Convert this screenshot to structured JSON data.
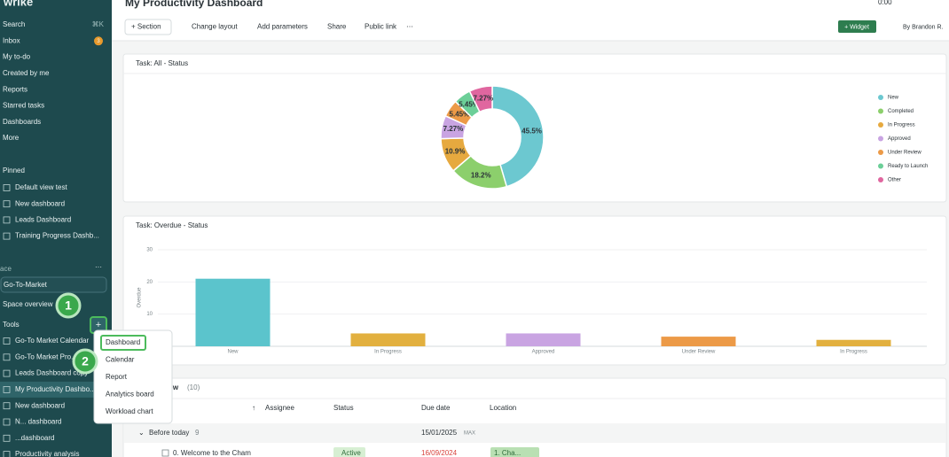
{
  "sidebar": {
    "logo": "wrike",
    "nav": [
      {
        "label": "Search",
        "shortcut": "⌘K"
      },
      {
        "label": "Inbox",
        "badge": "3"
      },
      {
        "label": "My to-do"
      },
      {
        "label": "Created by me"
      },
      {
        "label": "Reports"
      },
      {
        "label": "Starred tasks"
      },
      {
        "label": "Dashboards"
      },
      {
        "label": "More"
      }
    ],
    "pinned_title": "Pinned",
    "pinned": [
      "Default view test",
      "New dashboard",
      "Leads Dashboard",
      "Training Progress Dashb..."
    ],
    "space_title": "ace",
    "space": "Go-To-Market",
    "space_overview": "Space overview",
    "tools_title": "Tools",
    "tools": [
      "Go-To Market Calendar",
      "Go-To Market Pro...",
      "Leads Dashboard copy",
      "My Productivity Dashbo...",
      "New dashboard",
      "N... dashboard",
      "...dashboard",
      "Productivity analysis"
    ]
  },
  "menu": {
    "items": [
      "Dashboard",
      "Calendar",
      "Report",
      "Analytics board",
      "Workload chart"
    ]
  },
  "steps": [
    "1",
    "2"
  ],
  "header": {
    "title": "My Productivity Dashboard",
    "timer": "0:00",
    "toolbar": [
      "+ Section",
      "Change layout",
      "Add parameters",
      "Share",
      "Public link",
      "⋯"
    ],
    "add_widget": "+ Widget",
    "owner": "By Brandon R."
  },
  "chart_data": [
    {
      "type": "donut",
      "title": "Task: All - Status",
      "categories": [
        "New",
        "Completed",
        "In Progress",
        "Approved",
        "Under Review",
        "Ready to Launch",
        "Other"
      ],
      "values": [
        45.5,
        18.2,
        10.9,
        7.27,
        5.45,
        5.45,
        7.27
      ],
      "value_labels": [
        "45.5%",
        "18.2%",
        "10.9%",
        "7.27%",
        "5.45%",
        "5.45%",
        "7.27%"
      ],
      "colors": [
        "#6cc8d0",
        "#8ccf6c",
        "#e6a93f",
        "#c9a4e2",
        "#ec9a47",
        "#6ccf98",
        "#e0669f"
      ],
      "legend": "right"
    },
    {
      "type": "bar",
      "title": "Task: Overdue - Status",
      "y_label": "Overdue",
      "categories": [
        "New",
        "In Progress",
        "Approved",
        "Under Review",
        "In Progress"
      ],
      "values": [
        21,
        4,
        4,
        3,
        2
      ],
      "colors": [
        "#5bc4cc",
        "#e2b03f",
        "#c9a4e2",
        "#ec9a47",
        "#e2b03f"
      ],
      "ylim": [
        0,
        30
      ],
      "yticks": [
        10,
        20,
        30
      ],
      "grid": true
    }
  ],
  "table": {
    "title": "ow",
    "count": "(10)",
    "sort": "↑",
    "headers": [
      "Assignee",
      "Status",
      "Due date",
      "Location"
    ],
    "group": {
      "label": "Before today",
      "count": "9",
      "date": "15/01/2025",
      "flag": "MAX"
    },
    "row": {
      "name": "0. Welcome to the Cham",
      "status": "Active",
      "due": "16/09/2024",
      "location": "1. Cha..."
    }
  }
}
